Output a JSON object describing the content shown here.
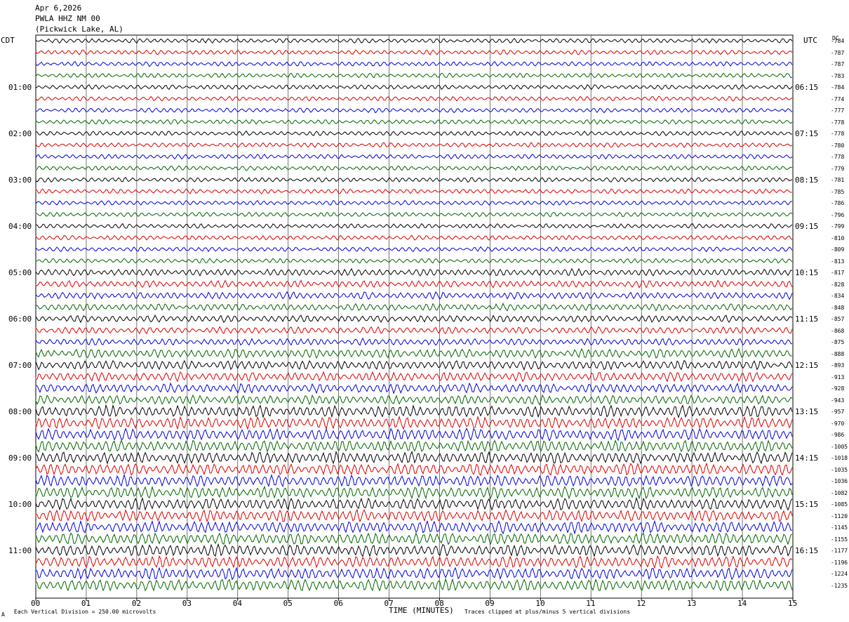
{
  "header": {
    "date": "Apr 6,2026",
    "station": "PWLA HHZ NM 00",
    "location": "(Pickwick Lake, AL)"
  },
  "labels": {
    "left_zone": "CDT",
    "right_zone": "UTC",
    "dc": "DC"
  },
  "footer": {
    "scale": "Each Vertical Division =  250.00 microvolts",
    "xlabel": "TIME (MINUTES)",
    "clip_note": "Traces clipped at plus/minus 5 vertical divisions",
    "corner_mark": "A"
  },
  "chart_data": {
    "type": "line",
    "trace_colors": [
      "#000000",
      "#dd0000",
      "#0000dd",
      "#006600"
    ],
    "x_ticks": [
      "00",
      "01",
      "02",
      "03",
      "04",
      "05",
      "06",
      "07",
      "08",
      "09",
      "10",
      "11",
      "12",
      "13",
      "14",
      "15"
    ],
    "xlim": [
      0,
      15
    ],
    "grid": true,
    "cdt_hours": [
      "01:00",
      "02:00",
      "03:00",
      "04:00",
      "05:00",
      "06:00",
      "07:00",
      "08:00",
      "09:00",
      "10:00",
      "11:00"
    ],
    "utc_hours": [
      "06:15",
      "07:15",
      "08:15",
      "09:15",
      "10:15",
      "11:15",
      "12:15",
      "13:15",
      "14:15",
      "15:15",
      "16:15"
    ],
    "dc_offsets": [
      "-784",
      "-787",
      "-787",
      "-783",
      "-784",
      "-774",
      "-777",
      "-778",
      "-778",
      "-780",
      "-778",
      "-779",
      "-781",
      "-785",
      "-786",
      "-796",
      "-799",
      "-810",
      "-809",
      "-813",
      "-817",
      "-828",
      "-834",
      "-848",
      "-857",
      "-868",
      "-875",
      "-888",
      "-893",
      "-913",
      "-928",
      "-943",
      "-957",
      "-970",
      "-986",
      "-1005",
      "-1018",
      "-1035",
      "-1036",
      "-1082",
      "-1085",
      "-1120",
      "-1145",
      "-1155",
      "-1177",
      "-1196",
      "-1224",
      "-1235"
    ],
    "trace_amplitude": [
      2,
      2,
      2,
      2,
      2,
      2,
      2,
      2,
      2,
      2,
      2,
      2,
      2,
      2,
      2,
      2,
      2,
      2,
      2,
      2,
      3,
      3,
      3,
      3,
      3,
      3,
      3,
      4,
      4,
      4,
      4,
      4,
      5,
      5,
      5,
      5,
      5,
      5,
      5,
      5,
      5,
      5,
      5,
      5,
      5,
      5,
      5,
      5
    ]
  }
}
